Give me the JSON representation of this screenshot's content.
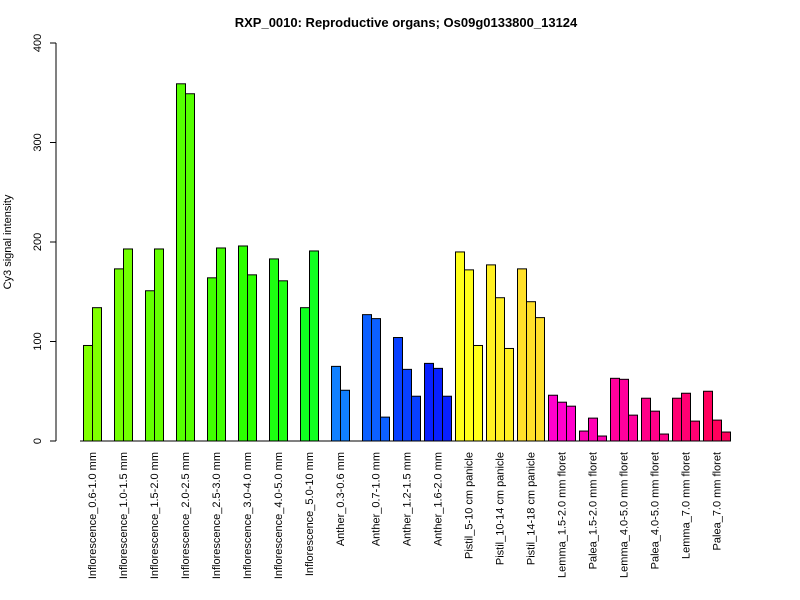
{
  "chart_data": {
    "type": "bar",
    "title": "RXP_0010: Reproductive organs; Os09g0133800_13124",
    "xlabel": "",
    "ylabel": "Cy3 signal intensity",
    "ylim": [
      0,
      400
    ],
    "yticks": [
      0,
      100,
      200,
      300,
      400
    ],
    "grid": false,
    "legend": "none",
    "groups": [
      {
        "label": "Inflorescence_0.6-1.0 mm",
        "color": "#80ff00",
        "values": [
          96,
          134
        ]
      },
      {
        "label": "Inflorescence_1.0-1.5 mm",
        "color": "#72ff00",
        "values": [
          173,
          193
        ]
      },
      {
        "label": "Inflorescence_1.5-2.0 mm",
        "color": "#64ff00",
        "values": [
          151,
          193
        ]
      },
      {
        "label": "Inflorescence_2.0-2.5 mm",
        "color": "#55ff00",
        "values": [
          359,
          349
        ]
      },
      {
        "label": "Inflorescence_2.5-3.0 mm",
        "color": "#40ff00",
        "values": [
          164,
          194
        ]
      },
      {
        "label": "Inflorescence_3.0-4.0 mm",
        "color": "#2cff00",
        "values": [
          196,
          167
        ]
      },
      {
        "label": "Inflorescence_4.0-5.0 mm",
        "color": "#1cff10",
        "values": [
          183,
          161
        ]
      },
      {
        "label": "Inflorescence_5.0-10 mm",
        "color": "#10ff20",
        "values": [
          134,
          191
        ]
      },
      {
        "label": "Anther_0.3-0.6 mm",
        "color": "#1080ff",
        "values": [
          75,
          51
        ]
      },
      {
        "label": "Anther_0.7-1.0 mm",
        "color": "#0c60ff",
        "values": [
          127,
          123,
          24
        ]
      },
      {
        "label": "Anther_1.2-1.5 mm",
        "color": "#0840ff",
        "values": [
          104,
          72,
          45
        ]
      },
      {
        "label": "Anther_1.6-2.0 mm",
        "color": "#0820ff",
        "values": [
          78,
          73,
          45
        ]
      },
      {
        "label": "Pistil_5-10 cm panicle",
        "color": "#ffff1a",
        "values": [
          190,
          172,
          96
        ]
      },
      {
        "label": "Pistil_10-14 cm panicle",
        "color": "#fff023",
        "values": [
          177,
          144,
          93
        ]
      },
      {
        "label": "Pistil_14-18 cm panicle",
        "color": "#ffe02a",
        "values": [
          173,
          140,
          124
        ]
      },
      {
        "label": "Lemma_1.5-2.0 mm floret",
        "color": "#ff00cc",
        "values": [
          46,
          39,
          35
        ]
      },
      {
        "label": "Palea_1.5-2.0 mm floret",
        "color": "#ff00b4",
        "values": [
          10,
          23,
          5
        ]
      },
      {
        "label": "Lemma_4.0-5.0 mm floret",
        "color": "#ff009c",
        "values": [
          63,
          62,
          26
        ]
      },
      {
        "label": "Palea_4.0-5.0 mm floret",
        "color": "#ff0088",
        "values": [
          43,
          30,
          7
        ]
      },
      {
        "label": "Lemma_7.0 mm floret",
        "color": "#ff0072",
        "values": [
          43,
          48,
          20
        ]
      },
      {
        "label": "Palea_7.0 mm floret",
        "color": "#ff005c",
        "values": [
          50,
          21,
          9
        ]
      }
    ]
  }
}
